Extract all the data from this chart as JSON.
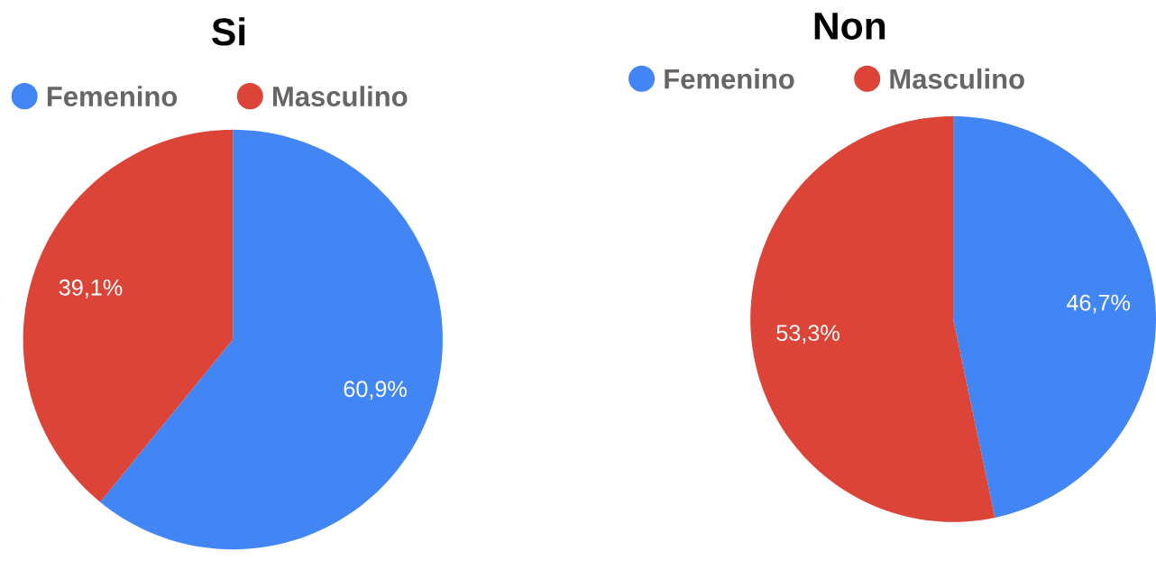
{
  "chart_data": [
    {
      "type": "pie",
      "title": "Si",
      "categories": [
        "Femenino",
        "Masculino"
      ],
      "values": [
        60.9,
        39.1
      ],
      "colors": [
        "#4285f4",
        "#db4437"
      ],
      "value_labels": [
        "60,9%",
        "39,1%"
      ],
      "legend": "top"
    },
    {
      "type": "pie",
      "title": "Non",
      "categories": [
        "Femenino",
        "Masculino"
      ],
      "values": [
        46.7,
        53.3
      ],
      "colors": [
        "#4285f4",
        "#db4437"
      ],
      "value_labels": [
        "46,7%",
        "53,3%"
      ],
      "legend": "top"
    }
  ]
}
